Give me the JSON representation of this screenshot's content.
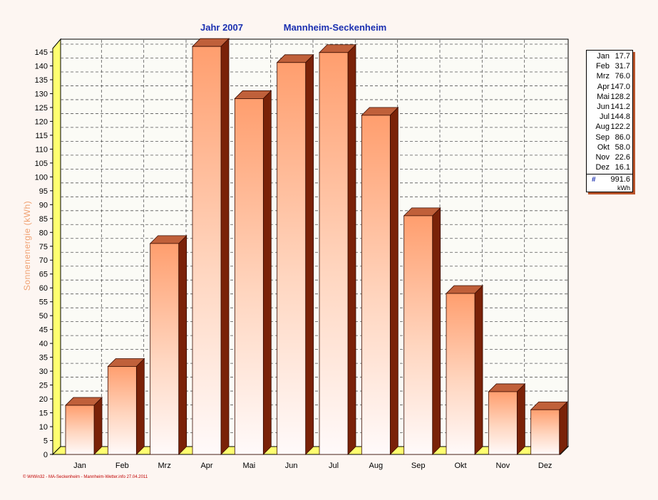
{
  "title": {
    "year": "Jahr  2007",
    "station": "Mannheim-Seckenheim"
  },
  "footer": "© WrWin32 - MA-Seckenheim - Mannheim-Wetter.info 27.04.2011",
  "colors": {
    "bar_top": "#ff9e6e",
    "bar_bottom": "#fffafa",
    "bar_side": "#7a2208",
    "bar_cap": "#c0603a",
    "floor": "#ffff80",
    "title": "#1a2fb0",
    "ylabel": "#f0a070"
  },
  "chart_data": {
    "type": "bar",
    "categories": [
      "Jan",
      "Feb",
      "Mrz",
      "Apr",
      "Mai",
      "Jun",
      "Jul",
      "Aug",
      "Sep",
      "Okt",
      "Nov",
      "Dez"
    ],
    "values": [
      17.7,
      31.7,
      76.0,
      147.0,
      128.2,
      141.2,
      144.8,
      122.2,
      86.0,
      58.0,
      22.6,
      16.1
    ],
    "ylabel": "Sonnenenergie  (kWh)",
    "ylim": [
      0,
      145
    ],
    "ytick_step": 5,
    "grid": true,
    "legend": {
      "placement": "right",
      "rows": [
        {
          "month": "Jan",
          "value": "17.7"
        },
        {
          "month": "Feb",
          "value": "31.7"
        },
        {
          "month": "Mrz",
          "value": "76.0"
        },
        {
          "month": "Apr",
          "value": "147.0"
        },
        {
          "month": "Mai",
          "value": "128.2"
        },
        {
          "month": "Jun",
          "value": "141.2"
        },
        {
          "month": "Jul",
          "value": "144.8"
        },
        {
          "month": "Aug",
          "value": "122.2"
        },
        {
          "month": "Sep",
          "value": "86.0"
        },
        {
          "month": "Okt",
          "value": "58.0"
        },
        {
          "month": "Nov",
          "value": "22.6"
        },
        {
          "month": "Dez",
          "value": "16.1"
        }
      ],
      "total_symbol": "#",
      "total": "991.6",
      "unit": "kWh"
    }
  }
}
